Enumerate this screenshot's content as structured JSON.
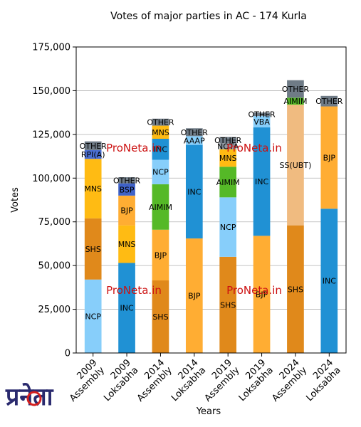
{
  "chart_data": {
    "type": "bar",
    "stacked": true,
    "title": "Votes of major parties in AC - 174 Kurla",
    "xlabel": "Years",
    "ylabel": "Votes",
    "ylim": [
      0,
      175000
    ],
    "yticks": [
      0,
      25000,
      50000,
      75000,
      100000,
      125000,
      150000,
      175000
    ],
    "ytick_labels": [
      "0",
      "25,000",
      "50,000",
      "75,000",
      "100,000",
      "125,000",
      "150,000",
      "175,000"
    ],
    "grid": "horizontal",
    "categories": [
      [
        "2009",
        "Assembly"
      ],
      [
        "2009",
        "Loksabha"
      ],
      [
        "2014",
        "Assembly"
      ],
      [
        "2014",
        "Loksabha"
      ],
      [
        "2019",
        "Assembly"
      ],
      [
        "2019",
        "Loksabha"
      ],
      [
        "2024",
        "Assembly"
      ],
      [
        "2024",
        "Loksabha"
      ]
    ],
    "bars": [
      [
        {
          "party": "NCP",
          "value": 42000,
          "color": "#87cefa"
        },
        {
          "party": "SHS",
          "value": 35000,
          "color": "#e0891b"
        },
        {
          "party": "MNS",
          "value": 34000,
          "color": "#ffbb13"
        },
        {
          "party": "RPI(A)",
          "value": 5000,
          "color": "#4a6ed0"
        },
        {
          "party": "OTHER",
          "value": 5000,
          "color": "#6f7b86"
        }
      ],
      [
        {
          "party": "INC",
          "value": 51500,
          "color": "#2091d4"
        },
        {
          "party": "MNS",
          "value": 21500,
          "color": "#ffbb13"
        },
        {
          "party": "BJP",
          "value": 17000,
          "color": "#ffad33"
        },
        {
          "party": "BSP",
          "value": 7000,
          "color": "#3f62c8"
        },
        {
          "party": "OTHER",
          "value": 3500,
          "color": "#6f7b86"
        }
      ],
      [
        {
          "party": "SHS",
          "value": 41500,
          "color": "#e0891b"
        },
        {
          "party": "BJP",
          "value": 29000,
          "color": "#ffad33"
        },
        {
          "party": "AIMIM",
          "value": 26000,
          "color": "#55b927"
        },
        {
          "party": "NCP",
          "value": 14000,
          "color": "#87cefa"
        },
        {
          "party": "INC",
          "value": 12000,
          "color": "#2091d4"
        },
        {
          "party": "MNS",
          "value": 7500,
          "color": "#ffbb13"
        },
        {
          "party": "OTHER",
          "value": 4000,
          "color": "#6f7b86"
        }
      ],
      [
        {
          "party": "BJP",
          "value": 65500,
          "color": "#ffad33"
        },
        {
          "party": "INC",
          "value": 53500,
          "color": "#2091d4"
        },
        {
          "party": "AAAP",
          "value": 5000,
          "color": "#87cefa"
        },
        {
          "party": "OTHER",
          "value": 4500,
          "color": "#6f7b86"
        }
      ],
      [
        {
          "party": "SHS",
          "value": 55000,
          "color": "#e0891b"
        },
        {
          "party": "NCP",
          "value": 34000,
          "color": "#87cefa"
        },
        {
          "party": "AIMIM",
          "value": 17500,
          "color": "#55b927"
        },
        {
          "party": "MNS",
          "value": 10000,
          "color": "#ffbb13"
        },
        {
          "party": "NOTA",
          "value": 3500,
          "color": "#8f9aa3"
        },
        {
          "party": "OTHER",
          "value": 3500,
          "color": "#6f7b86"
        }
      ],
      [
        {
          "party": "BJP",
          "value": 67000,
          "color": "#ffad33"
        },
        {
          "party": "INC",
          "value": 62000,
          "color": "#2091d4"
        },
        {
          "party": "VBA",
          "value": 6500,
          "color": "#87cefa"
        },
        {
          "party": "OTHER",
          "value": 2000,
          "color": "#6f7b86"
        }
      ],
      [
        {
          "party": "SHS",
          "value": 73000,
          "color": "#e0891b"
        },
        {
          "party": "SS(UBT)",
          "value": 69000,
          "color": "#f0bb80"
        },
        {
          "party": "AIMIM",
          "value": 4000,
          "color": "#55b927"
        },
        {
          "party": "OTHER",
          "value": 10000,
          "color": "#6f7b86"
        }
      ],
      [
        {
          "party": "INC",
          "value": 82500,
          "color": "#2091d4"
        },
        {
          "party": "BJP",
          "value": 58500,
          "color": "#ffad33"
        },
        {
          "party": "OTHER",
          "value": 6000,
          "color": "#6f7b86"
        }
      ]
    ],
    "watermarks": [
      "ProNeta.in",
      "ProNeta.in",
      "ProNeta.in",
      "ProNeta.in"
    ]
  },
  "logo": {
    "name": "ProNeta-logo-icon",
    "text": "प्रनेता",
    "color_dark": "#2a2a6e",
    "color_accent": "#d42020"
  }
}
